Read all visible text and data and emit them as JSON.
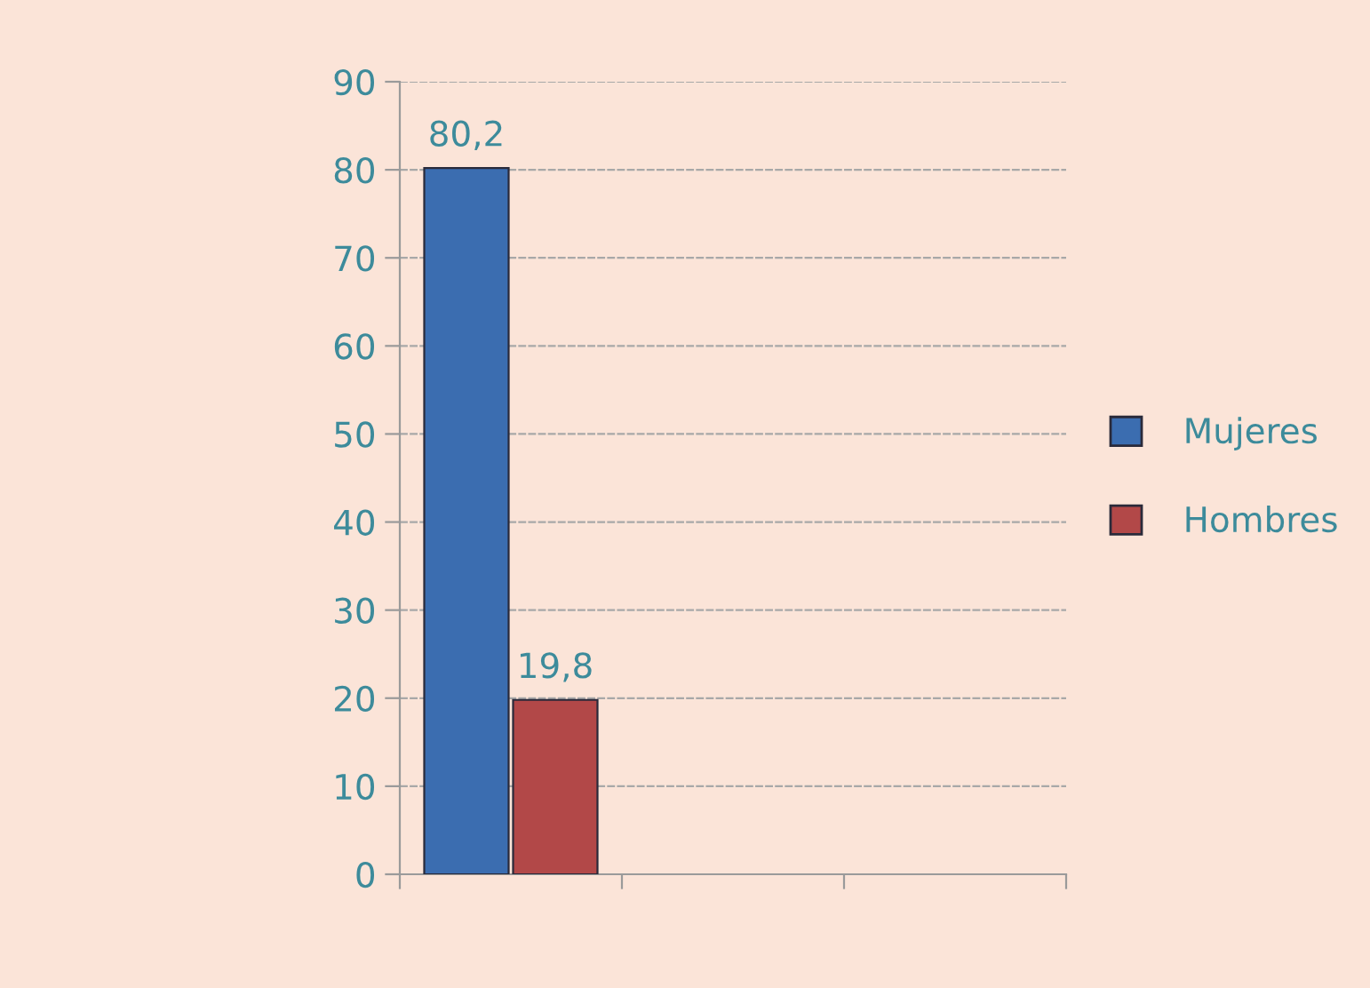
{
  "chart_data": {
    "type": "bar",
    "categories": [
      null,
      null,
      null
    ],
    "series": [
      {
        "name": "Mujeres",
        "color": "#3b6db0",
        "values": [
          80.2,
          null,
          null
        ],
        "value_labels": [
          "80,2",
          null,
          null
        ]
      },
      {
        "name": "Hombres",
        "color": "#b24848",
        "values": [
          19.8,
          null,
          null
        ],
        "value_labels": [
          "19,8",
          null,
          null
        ]
      }
    ],
    "ylim": [
      0,
      90
    ],
    "yticks": [
      0,
      10,
      20,
      30,
      40,
      50,
      60,
      70,
      80,
      90
    ],
    "grid": "y",
    "legend": "right",
    "tick_labels": "y"
  }
}
